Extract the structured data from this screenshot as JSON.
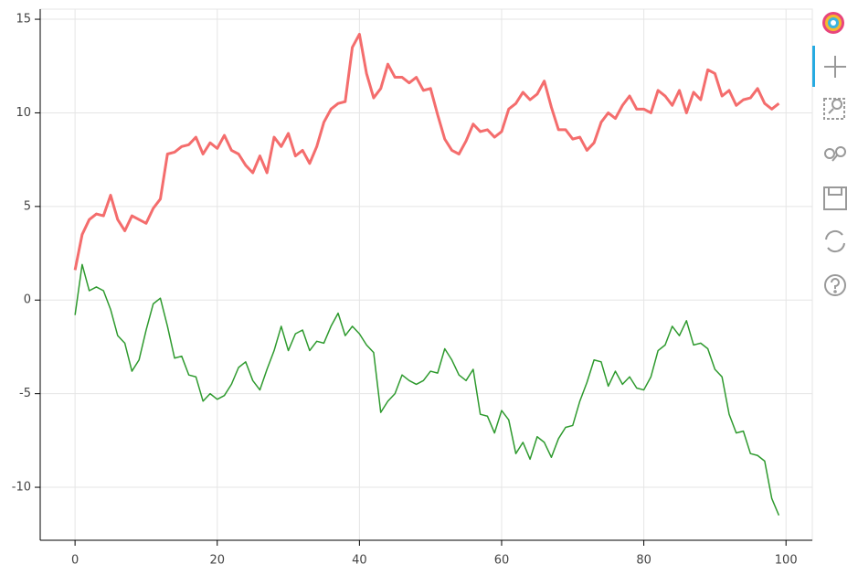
{
  "chart_data": {
    "type": "line",
    "x": [
      0,
      1,
      2,
      3,
      4,
      5,
      6,
      7,
      8,
      9,
      10,
      11,
      12,
      13,
      14,
      15,
      16,
      17,
      18,
      19,
      20,
      21,
      22,
      23,
      24,
      25,
      26,
      27,
      28,
      29,
      30,
      31,
      32,
      33,
      34,
      35,
      36,
      37,
      38,
      39,
      40,
      41,
      42,
      43,
      44,
      45,
      46,
      47,
      48,
      49,
      50,
      51,
      52,
      53,
      54,
      55,
      56,
      57,
      58,
      59,
      60,
      61,
      62,
      63,
      64,
      65,
      66,
      67,
      68,
      69,
      70,
      71,
      72,
      73,
      74,
      75,
      76,
      77,
      78,
      79,
      80,
      81,
      82,
      83,
      84,
      85,
      86,
      87,
      88,
      89,
      90,
      91,
      92,
      93,
      94,
      95,
      96,
      97,
      98,
      99
    ],
    "series": [
      {
        "color": "#f46d6d",
        "width": 3,
        "values": [
          1.6,
          3.5,
          4.3,
          4.6,
          4.5,
          5.6,
          4.3,
          3.7,
          4.5,
          4.3,
          4.1,
          4.9,
          5.4,
          7.8,
          7.9,
          8.2,
          8.3,
          8.7,
          7.8,
          8.4,
          8.1,
          8.8,
          8.0,
          7.8,
          7.2,
          6.8,
          7.7,
          6.8,
          8.7,
          8.2,
          8.9,
          7.7,
          8.0,
          7.3,
          8.2,
          9.5,
          10.2,
          10.5,
          10.6,
          13.5,
          14.2,
          12.1,
          10.8,
          11.3,
          12.6,
          11.9,
          11.9,
          11.6,
          11.9,
          11.2,
          11.3,
          9.9,
          8.6,
          8.0,
          7.8,
          8.5,
          9.4,
          9.0,
          9.1,
          8.7,
          9.0,
          10.2,
          10.5,
          11.1,
          10.7,
          11.0,
          11.7,
          10.3,
          9.1,
          9.1,
          8.6,
          8.7,
          8.0,
          8.4,
          9.5,
          10.0,
          9.7,
          10.4,
          10.9,
          10.2,
          10.2,
          10.0,
          11.2,
          10.9,
          10.4,
          11.2,
          10.0,
          11.1,
          10.7,
          12.3,
          12.1,
          10.9,
          11.2,
          10.4,
          10.7,
          10.8,
          11.3,
          10.5,
          10.2,
          10.5
        ]
      },
      {
        "color": "#2e9a2e",
        "width": 1.5,
        "values": [
          -0.8,
          1.9,
          0.5,
          0.7,
          0.5,
          -0.5,
          -1.9,
          -2.3,
          -3.8,
          -3.2,
          -1.6,
          -0.2,
          0.1,
          -1.4,
          -3.1,
          -3.0,
          -4.0,
          -4.1,
          -5.4,
          -5.0,
          -5.3,
          -5.1,
          -4.5,
          -3.6,
          -3.3,
          -4.3,
          -4.8,
          -3.7,
          -2.7,
          -1.4,
          -2.7,
          -1.8,
          -1.6,
          -2.7,
          -2.2,
          -2.3,
          -1.4,
          -0.7,
          -1.9,
          -1.4,
          -1.8,
          -2.4,
          -2.8,
          -6.0,
          -5.4,
          -5.0,
          -4.0,
          -4.3,
          -4.5,
          -4.3,
          -3.8,
          -3.9,
          -2.6,
          -3.2,
          -4.0,
          -4.3,
          -3.7,
          -6.1,
          -6.2,
          -7.1,
          -5.9,
          -6.4,
          -8.2,
          -7.6,
          -8.5,
          -7.3,
          -7.6,
          -8.4,
          -7.4,
          -6.8,
          -6.7,
          -5.4,
          -4.4,
          -3.2,
          -3.3,
          -4.6,
          -3.8,
          -4.5,
          -4.1,
          -4.7,
          -4.8,
          -4.1,
          -2.7,
          -2.4,
          -1.4,
          -1.9,
          -1.1,
          -2.4,
          -2.3,
          -2.6,
          -3.7,
          -4.1,
          -6.1,
          -7.1,
          -7.0,
          -8.2,
          -8.3,
          -8.6,
          -10.6,
          -11.5
        ]
      }
    ],
    "xlim": [
      -4.9,
      103.7
    ],
    "ylim": [
      -12.83,
      15.54
    ],
    "xticks": [
      0,
      20,
      40,
      60,
      80,
      100
    ],
    "yticks": [
      -10,
      -5,
      0,
      5,
      10,
      15
    ],
    "grid": true
  }
}
